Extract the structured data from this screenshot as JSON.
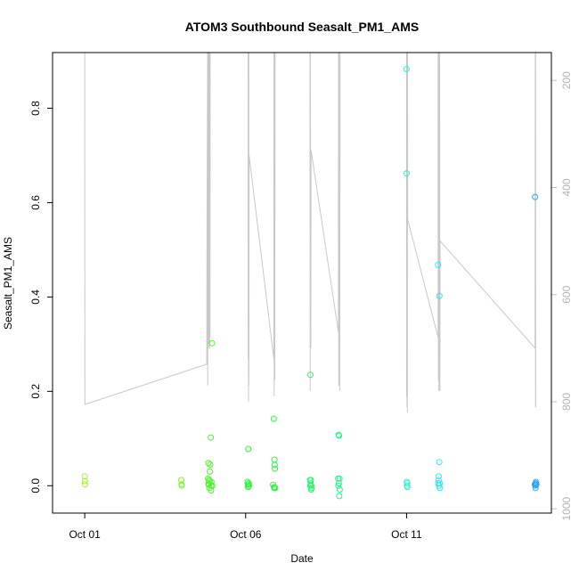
{
  "chart_data": {
    "type": "scatter",
    "title": "ATOM3 Southbound Seasalt_PM1_AMS",
    "xlabel": "Date",
    "ylabel": "Seasalt_PM1_AMS",
    "xlim": [
      "2017-09-30T00:00",
      "2017-10-15T12:00"
    ],
    "ylim": [
      -0.058,
      0.918
    ],
    "y_ticks": [
      0.0,
      0.2,
      0.4,
      0.6,
      0.8
    ],
    "x_ticks": [
      {
        "date": "2017-10-01",
        "label": "Oct 01"
      },
      {
        "date": "2017-10-06",
        "label": "Oct 06"
      },
      {
        "date": "2017-10-11",
        "label": "Oct 11"
      }
    ],
    "right_axis": {
      "label": "",
      "ticks": [
        200,
        400,
        600,
        800,
        1000
      ],
      "reversed": true,
      "range": [
        148,
        1008
      ],
      "color": "#bebebe"
    },
    "pressure_series": {
      "color": "#c8c8c8",
      "points": [
        [
          "2017-10-01T00:00",
          120
        ],
        [
          "2017-10-01T00:05",
          805
        ],
        [
          "2017-10-04T19:00",
          730
        ],
        [
          "2017-10-04T19:10",
          480
        ],
        [
          "2017-10-04T19:40",
          120
        ],
        [
          "2017-10-04T19:45",
          770
        ],
        [
          "2017-10-04T20:00",
          120
        ],
        [
          "2017-10-04T20:10",
          700
        ],
        [
          "2017-10-04T20:20",
          120
        ],
        [
          "2017-10-04T20:25",
          680
        ],
        [
          "2017-10-04T20:35",
          120
        ],
        [
          "2017-10-04T20:45",
          690
        ],
        [
          "2017-10-04T21:00",
          120
        ],
        [
          "2017-10-04T21:05",
          700
        ],
        [
          "2017-10-04T21:10",
          120
        ],
        [
          "2017-10-04T21:15",
          660
        ],
        [
          "2017-10-04T21:20",
          120
        ],
        [
          "2017-10-04T21:25",
          680
        ],
        [
          "2017-10-04T21:30",
          120
        ],
        [
          "2017-10-06T01:50",
          120
        ],
        [
          "2017-10-06T01:55",
          720
        ],
        [
          "2017-10-06T02:05",
          120
        ],
        [
          "2017-10-06T02:10",
          800
        ],
        [
          "2017-10-06T02:20",
          120
        ],
        [
          "2017-10-06T02:25",
          770
        ],
        [
          "2017-10-06T02:35",
          340
        ],
        [
          "2017-10-06T21:00",
          720
        ],
        [
          "2017-10-06T21:10",
          120
        ],
        [
          "2017-10-06T21:15",
          790
        ],
        [
          "2017-10-06T21:25",
          120
        ],
        [
          "2017-10-06T21:30",
          700
        ],
        [
          "2017-10-06T21:40",
          120
        ],
        [
          "2017-10-06T21:45",
          760
        ],
        [
          "2017-10-06T21:55",
          120
        ],
        [
          "2017-10-08T00:00",
          120
        ],
        [
          "2017-10-08T00:05",
          780
        ],
        [
          "2017-10-08T00:15",
          120
        ],
        [
          "2017-10-08T00:25",
          440
        ],
        [
          "2017-10-08T00:35",
          700
        ],
        [
          "2017-10-08T00:45",
          330
        ],
        [
          "2017-10-08T21:10",
          670
        ],
        [
          "2017-10-08T21:15",
          120
        ],
        [
          "2017-10-08T21:25",
          770
        ],
        [
          "2017-10-08T21:35",
          120
        ],
        [
          "2017-10-08T21:45",
          690
        ],
        [
          "2017-10-08T22:00",
          120
        ],
        [
          "2017-10-08T22:10",
          780
        ],
        [
          "2017-10-08T22:20",
          120
        ],
        [
          "2017-10-11T00:00",
          120
        ],
        [
          "2017-10-11T00:05",
          790
        ],
        [
          "2017-10-11T00:15",
          120
        ],
        [
          "2017-10-11T00:20",
          810
        ],
        [
          "2017-10-11T00:30",
          120
        ],
        [
          "2017-10-11T00:35",
          820
        ],
        [
          "2017-10-11T00:45",
          120
        ],
        [
          "2017-10-11T00:50",
          460
        ],
        [
          "2017-10-11T23:30",
          680
        ],
        [
          "2017-10-11T23:35",
          120
        ],
        [
          "2017-10-11T23:45",
          760
        ],
        [
          "2017-10-11T23:55",
          120
        ],
        [
          "2017-10-12T00:05",
          780
        ],
        [
          "2017-10-12T00:15",
          120
        ],
        [
          "2017-10-12T00:20",
          320
        ],
        [
          "2017-10-12T00:30",
          780
        ],
        [
          "2017-10-12T00:40",
          120
        ],
        [
          "2017-10-12T00:50",
          780
        ],
        [
          "2017-10-12T01:00",
          500
        ],
        [
          "2017-10-14T23:50",
          700
        ],
        [
          "2017-10-15T00:00",
          120
        ],
        [
          "2017-10-15T00:10",
          810
        ],
        [
          "2017-10-15T00:15",
          120
        ],
        [
          "2017-10-15T00:20",
          810
        ],
        [
          "2017-10-15T00:30",
          810
        ]
      ]
    },
    "series": [
      {
        "points": [
          [
            "2017-10-01T00:00",
            0.02,
            "#a6f22e"
          ],
          [
            "2017-10-01T00:05",
            0.01,
            "#a6f22e"
          ],
          [
            "2017-10-01T00:10",
            0.003,
            "#a6f22e"
          ],
          [
            "2017-10-04T00:00",
            0.012,
            "#7ef22e"
          ],
          [
            "2017-10-04T00:10",
            0.003,
            "#7ef22e"
          ],
          [
            "2017-10-04T00:20",
            0.0,
            "#7ef22e"
          ],
          [
            "2017-10-04T20:00",
            0.015,
            "#4cf22e"
          ],
          [
            "2017-10-04T20:10",
            0.048,
            "#4cf22e"
          ],
          [
            "2017-10-04T20:20",
            0.005,
            "#4cf22e"
          ],
          [
            "2017-10-04T20:30",
            0.002,
            "#4cf22e"
          ],
          [
            "2017-10-04T20:40",
            0.012,
            "#4cf22e"
          ],
          [
            "2017-10-04T21:00",
            -0.005,
            "#4cf22e"
          ],
          [
            "2017-10-04T21:10",
            0.01,
            "#4cf22e"
          ],
          [
            "2017-10-04T21:20",
            0.03,
            "#4cf22e"
          ],
          [
            "2017-10-04T21:30",
            0.045,
            "#4cf22e"
          ],
          [
            "2017-10-04T22:00",
            0.102,
            "#4cf22e"
          ],
          [
            "2017-10-04T22:10",
            -0.01,
            "#4cf22e"
          ],
          [
            "2017-10-04T22:20",
            0.0,
            "#4cf22e"
          ],
          [
            "2017-10-04T22:30",
            0.008,
            "#4cf22e"
          ],
          [
            "2017-10-04T23:00",
            0.302,
            "#4cf22e"
          ],
          [
            "2017-10-04T23:10",
            0.0,
            "#4cf22e"
          ],
          [
            "2017-10-06T01:30",
            0.008,
            "#2ef23a"
          ],
          [
            "2017-10-06T01:40",
            0.003,
            "#2ef23a"
          ],
          [
            "2017-10-06T01:50",
            -0.003,
            "#2ef23a"
          ],
          [
            "2017-10-06T02:00",
            0.078,
            "#2ef23a"
          ],
          [
            "2017-10-06T02:10",
            0.0,
            "#2ef23a"
          ],
          [
            "2017-10-06T02:20",
            0.005,
            "#2ef23a"
          ],
          [
            "2017-10-06T02:30",
            0.0,
            "#2ef23a"
          ],
          [
            "2017-10-06T20:30",
            0.002,
            "#2ef247"
          ],
          [
            "2017-10-06T21:00",
            0.142,
            "#2ef247"
          ],
          [
            "2017-10-06T21:10",
            -0.003,
            "#2ef247"
          ],
          [
            "2017-10-06T21:20",
            -0.005,
            "#2ef247"
          ],
          [
            "2017-10-06T21:30",
            0.055,
            "#2ef247"
          ],
          [
            "2017-10-06T21:40",
            0.044,
            "#2ef247"
          ],
          [
            "2017-10-06T21:50",
            0.036,
            "#2ef247"
          ],
          [
            "2017-10-06T22:00",
            -0.005,
            "#2ef247"
          ],
          [
            "2017-10-08T00:00",
            0.012,
            "#2ef26a"
          ],
          [
            "2017-10-08T00:10",
            0.0,
            "#2ef26a"
          ],
          [
            "2017-10-08T00:20",
            0.235,
            "#2ef26a"
          ],
          [
            "2017-10-08T00:30",
            0.005,
            "#2ef26a"
          ],
          [
            "2017-10-08T00:40",
            0.012,
            "#2ef26a"
          ],
          [
            "2017-10-08T00:50",
            -0.008,
            "#2ef26a"
          ],
          [
            "2017-10-08T01:00",
            0.0,
            "#2ef26a"
          ],
          [
            "2017-10-08T01:10",
            -0.005,
            "#2ef26a"
          ],
          [
            "2017-10-08T21:00",
            0.015,
            "#2ef283"
          ],
          [
            "2017-10-08T21:10",
            0.0,
            "#2ef283"
          ],
          [
            "2017-10-08T21:20",
            0.108,
            "#2ef283"
          ],
          [
            "2017-10-08T21:30",
            0.005,
            "#2ef283"
          ],
          [
            "2017-10-08T21:40",
            0.106,
            "#2ef283"
          ],
          [
            "2017-10-08T21:50",
            -0.022,
            "#2ef283"
          ],
          [
            "2017-10-08T22:00",
            0.015,
            "#2ef283"
          ],
          [
            "2017-10-08T22:10",
            -0.008,
            "#2ef283"
          ],
          [
            "2017-10-11T00:00",
            0.883,
            "#2ef2d0"
          ],
          [
            "2017-10-11T00:05",
            0.662,
            "#2ef2d0"
          ],
          [
            "2017-10-11T00:10",
            0.008,
            "#2ef2d0"
          ],
          [
            "2017-10-11T00:20",
            0.0,
            "#2ef2d0"
          ],
          [
            "2017-10-11T00:30",
            0.005,
            "#2ef2d0"
          ],
          [
            "2017-10-11T00:40",
            -0.003,
            "#2ef2d0"
          ],
          [
            "2017-10-11T23:30",
            0.468,
            "#2ee8f2"
          ],
          [
            "2017-10-11T23:40",
            0.005,
            "#2ee8f2"
          ],
          [
            "2017-10-11T23:50",
            0.012,
            "#2ee8f2"
          ],
          [
            "2017-10-12T00:00",
            0.02,
            "#2ee8f2"
          ],
          [
            "2017-10-12T00:10",
            0.0,
            "#2ee8f2"
          ],
          [
            "2017-10-12T00:20",
            0.05,
            "#2ee8f2"
          ],
          [
            "2017-10-12T00:30",
            0.402,
            "#2ee8f2"
          ],
          [
            "2017-10-12T00:40",
            0.005,
            "#2ee8f2"
          ],
          [
            "2017-10-12T00:50",
            -0.005,
            "#2ee8f2"
          ],
          [
            "2017-10-14T23:40",
            0.003,
            "#2ea6f2"
          ],
          [
            "2017-10-14T23:50",
            0.612,
            "#2ea6f2"
          ],
          [
            "2017-10-15T00:00",
            0.0,
            "#2ea6f2"
          ],
          [
            "2017-10-15T00:10",
            -0.005,
            "#2ea6f2"
          ],
          [
            "2017-10-15T00:20",
            0.005,
            "#2ea6f2"
          ],
          [
            "2017-10-15T00:30",
            0.008,
            "#2ea6f2"
          ],
          [
            "2017-10-15T00:40",
            0.002,
            "#2ea6f2"
          ],
          [
            "2017-10-15T00:50",
            0.003,
            "#2ea6f2"
          ]
        ]
      }
    ],
    "grid": false,
    "legend": "none"
  }
}
